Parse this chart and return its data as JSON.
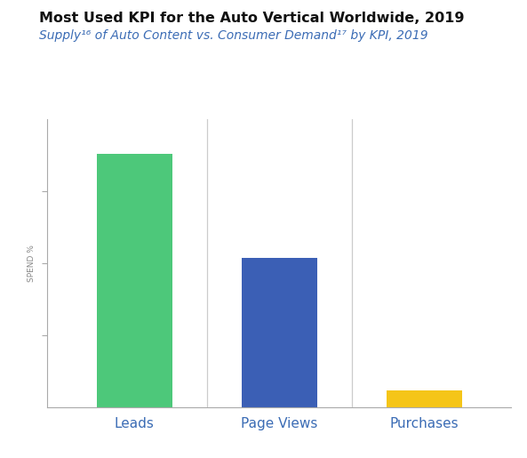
{
  "title": "Most Used KPI for the Auto Vertical Worldwide, 2019",
  "subtitle": "Supply¹⁶ of Auto Content vs. Consumer Demand¹⁷ by KPI, 2019",
  "categories": [
    "Leads",
    "Page Views",
    "Purchases"
  ],
  "values": [
    88,
    52,
    6
  ],
  "bar_colors": [
    "#4DC87A",
    "#3B5FB5",
    "#F5C518"
  ],
  "ylabel": "SPEND %",
  "ylim": [
    0,
    100
  ],
  "background_color": "#FFFFFF",
  "title_fontsize": 11.5,
  "subtitle_fontsize": 10,
  "tick_label_color": "#3B6CB5",
  "ylabel_fontsize": 6.5,
  "xlabel_fontsize": 11,
  "yticks": [
    25,
    50,
    75
  ],
  "separator_color": "#CCCCCC",
  "spine_color": "#AAAAAA"
}
